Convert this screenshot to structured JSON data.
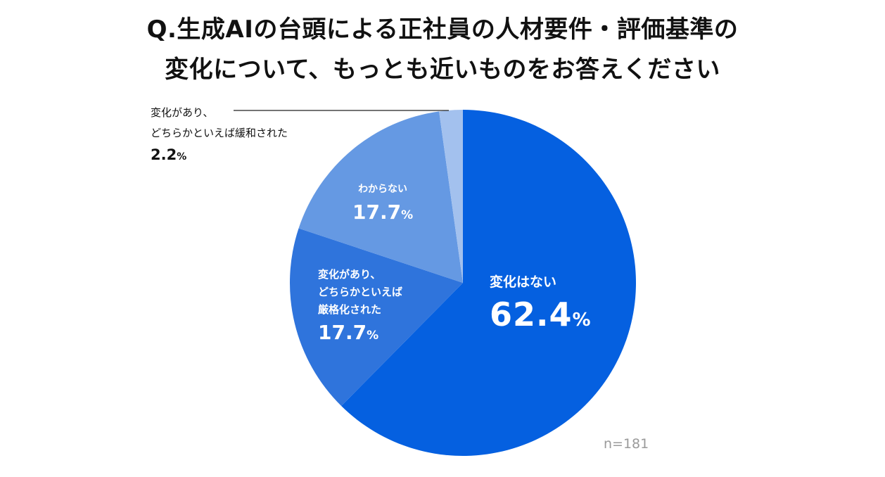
{
  "title": {
    "line1": "Q.生成AIの台頭による正社員の人材要件・評価基準の",
    "line2": "変化について、もっとも近いものをお答えください"
  },
  "sample_size": "n=181",
  "chart_data": {
    "type": "pie",
    "title": "Q.生成AIの台頭による正社員の人材要件・評価基準の変化について、もっとも近いものをお答えください",
    "unit": "%",
    "start": "12 o'clock, clockwise",
    "slices": [
      {
        "label": "変化はない",
        "value": 62.4,
        "value_text": "62.4",
        "color": "#0560E0"
      },
      {
        "label": "変化があり、\nどちらかといえば\n厳格化された",
        "value": 17.7,
        "value_text": "17.7",
        "color": "#2F74DC"
      },
      {
        "label": "わからない",
        "value": 17.7,
        "value_text": "17.7",
        "color": "#6599E3"
      },
      {
        "label": "変化があり、\nどちらかといえば緩和された",
        "value": 2.2,
        "value_text": "2.2",
        "color": "#A3C1EE"
      }
    ]
  }
}
